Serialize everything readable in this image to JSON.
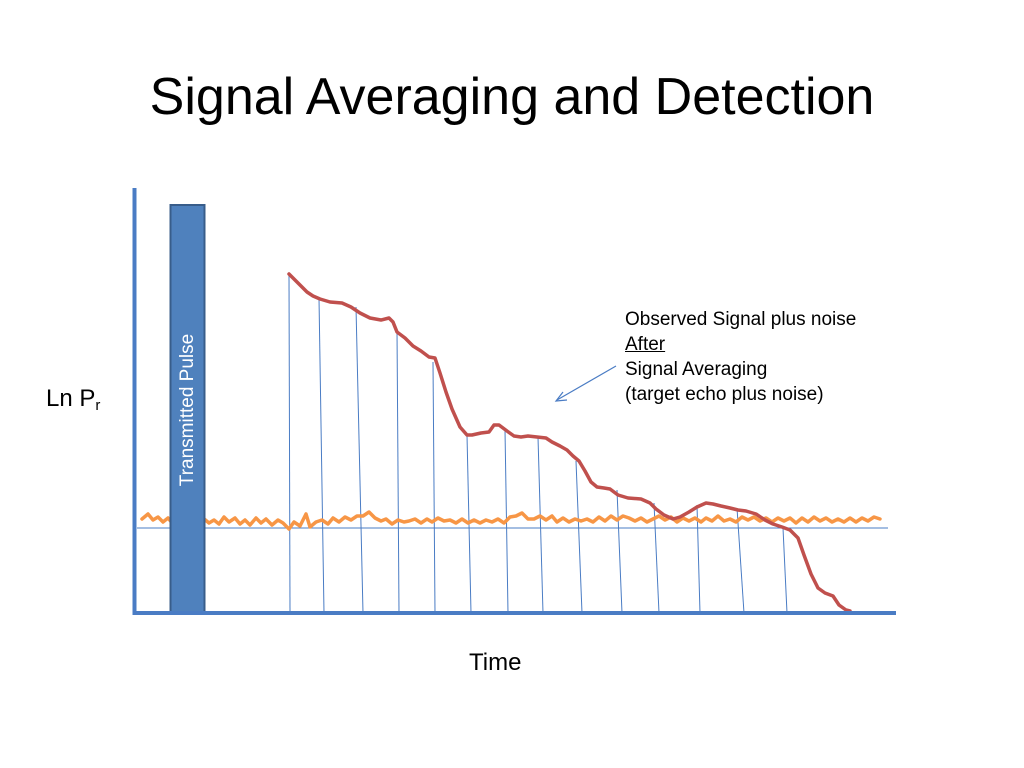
{
  "title": "Signal Averaging and Detection",
  "axes": {
    "y_label": "Ln P",
    "y_label_subscript": "r",
    "x_label": "Time"
  },
  "pulse": {
    "label": "Transmitted Pulse"
  },
  "annotation": {
    "line1": "Observed Signal plus noise",
    "line2": "After ",
    "line3": "Signal Averaging",
    "line4": "(target echo plus noise)"
  },
  "colors": {
    "axis": "#4a7cc4",
    "pulse_fill": "#4f81bd",
    "pulse_border": "#385d8a",
    "signal": "#c0504d",
    "noise": "#f79646",
    "sample_lines": "#4a7cc4"
  }
}
